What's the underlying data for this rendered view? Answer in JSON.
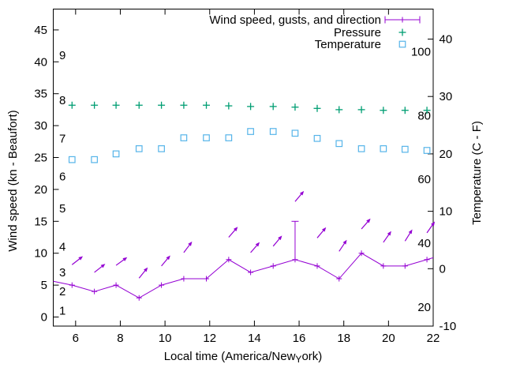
{
  "chart_data": {
    "type": "line",
    "title": "",
    "grid": false,
    "colors": {
      "wind": "#9400d3",
      "pressure": "#009e73",
      "temperature": "#56b4e9",
      "axis": "#000000"
    },
    "legend": {
      "position": "top-right-inside"
    },
    "x_axis": {
      "label": "Local time (America/New_York)",
      "label_parts": {
        "pre": "Local time (America/New",
        "sub": "Y",
        "post": "ork)"
      },
      "range": [
        5,
        22
      ],
      "ticks": [
        6,
        8,
        10,
        12,
        14,
        16,
        18,
        20,
        22
      ]
    },
    "left_axis": {
      "label": "Wind speed (kn - Beaufort)",
      "unit": "kn",
      "ticks": [
        0,
        5,
        10,
        15,
        20,
        25,
        30,
        35,
        40,
        45
      ],
      "beaufort_labels": [
        {
          "text": "1",
          "kn": 1
        },
        {
          "text": "2",
          "kn": 4
        },
        {
          "text": "3",
          "kn": 7
        },
        {
          "text": "4",
          "kn": 11
        },
        {
          "text": "5",
          "kn": 17
        },
        {
          "text": "6",
          "kn": 22
        },
        {
          "text": "7",
          "kn": 28
        },
        {
          "text": "8",
          "kn": 34
        },
        {
          "text": "9",
          "kn": 41
        }
      ]
    },
    "right_axis": {
      "label": "Temperature (C - F)",
      "unit": "C",
      "ticks_c": [
        -10,
        0,
        10,
        20,
        30,
        40
      ],
      "f_labels": [
        {
          "text": "20",
          "f": 20
        },
        {
          "text": "40",
          "f": 40
        },
        {
          "text": "60",
          "f": 60
        },
        {
          "text": "80",
          "f": 80
        },
        {
          "text": "100",
          "f": 100
        }
      ]
    },
    "x_hours": [
      5.84,
      6.84,
      7.81,
      8.84,
      9.84,
      10.84,
      11.85,
      12.85,
      13.83,
      14.84,
      15.82,
      16.81,
      17.79,
      18.79,
      19.77,
      20.74,
      21.72
    ],
    "series": [
      {
        "name": "Wind speed, gusts, and direction",
        "axis": "left",
        "marker": "plus",
        "color_key": "wind",
        "values_kn": [
          5,
          4,
          5,
          3,
          5,
          6,
          6,
          9,
          7,
          8,
          9,
          8,
          6,
          10,
          8,
          8,
          9
        ],
        "line_edge_start": {
          "x": 5.0,
          "y_kn": 5.6
        },
        "line_edge_end": {
          "x": 22.0,
          "y_kn": 9.3
        },
        "gusts": [
          {
            "x": 15.82,
            "speed_kn": 9,
            "gust_kn": 15
          }
        ],
        "direction_arrows": [
          {
            "x": 5.84,
            "y_kn": 8.2,
            "angle_deg": 38
          },
          {
            "x": 6.84,
            "y_kn": 7.0,
            "angle_deg": 38
          },
          {
            "x": 7.81,
            "y_kn": 8.1,
            "angle_deg": 36
          },
          {
            "x": 8.84,
            "y_kn": 6.1,
            "angle_deg": 51
          },
          {
            "x": 9.84,
            "y_kn": 8.0,
            "angle_deg": 50
          },
          {
            "x": 10.84,
            "y_kn": 10.1,
            "angle_deg": 53
          },
          {
            "x": 12.85,
            "y_kn": 12.5,
            "angle_deg": 49
          },
          {
            "x": 13.83,
            "y_kn": 10.1,
            "angle_deg": 49
          },
          {
            "x": 14.84,
            "y_kn": 11.1,
            "angle_deg": 50
          },
          {
            "x": 15.82,
            "y_kn": 18.1,
            "angle_deg": 50
          },
          {
            "x": 16.81,
            "y_kn": 12.4,
            "angle_deg": 50
          },
          {
            "x": 17.79,
            "y_kn": 10.3,
            "angle_deg": 56
          },
          {
            "x": 18.79,
            "y_kn": 13.8,
            "angle_deg": 49
          },
          {
            "x": 19.77,
            "y_kn": 11.7,
            "angle_deg": 55
          },
          {
            "x": 20.74,
            "y_kn": 11.9,
            "angle_deg": 58
          },
          {
            "x": 21.72,
            "y_kn": 13.2,
            "angle_deg": 55
          }
        ]
      },
      {
        "name": "Pressure",
        "axis": "none-shown",
        "marker": "plus",
        "color_key": "pressure",
        "note": "no pressure scale is drawn; heights given in left-axis (kn) units as plotted",
        "y_left_axis_units": [
          33.2,
          33.2,
          33.2,
          33.2,
          33.2,
          33.2,
          33.2,
          33.1,
          33.0,
          33.0,
          32.9,
          32.7,
          32.5,
          32.5,
          32.4,
          32.4,
          32.4
        ]
      },
      {
        "name": "Temperature",
        "axis": "right",
        "marker": "open-square",
        "color_key": "temperature",
        "values_c": [
          19.0,
          19.0,
          20.0,
          20.9,
          20.9,
          22.8,
          22.8,
          22.8,
          23.9,
          23.9,
          23.6,
          22.7,
          21.8,
          20.9,
          20.9,
          20.8,
          20.6
        ]
      }
    ]
  }
}
